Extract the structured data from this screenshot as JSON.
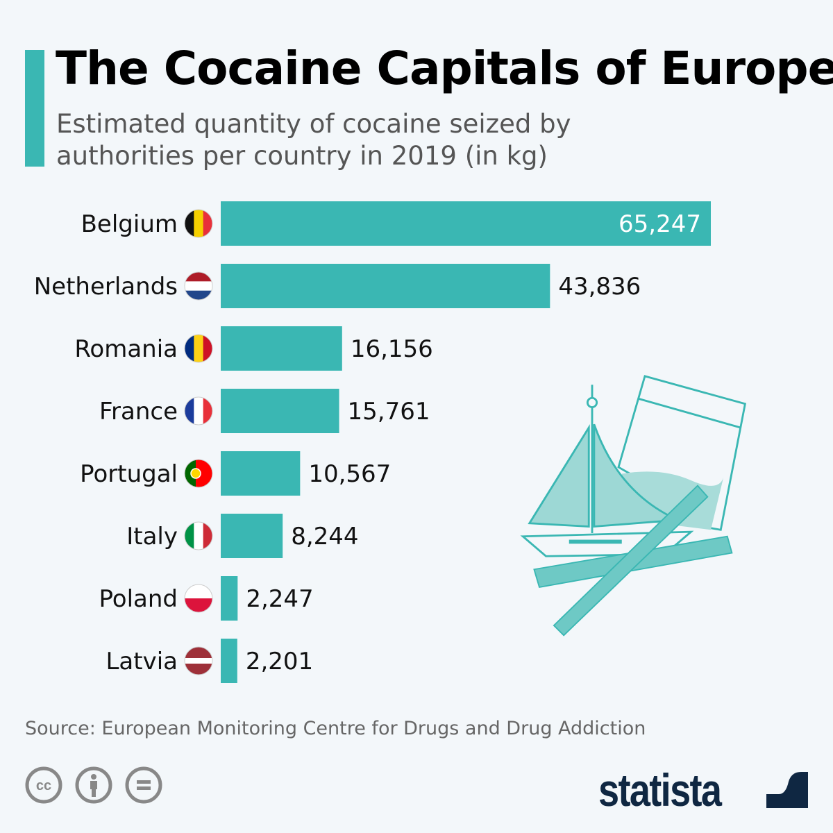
{
  "title": "The Cocaine Capitals of Europe",
  "subtitle": "Estimated quantity of cocaine seized by authorities per country in 2019 (in kg)",
  "source": "Source: European Monitoring Centre for Drugs and Drug Addiction",
  "brand": "statista",
  "colors": {
    "bar": "#3ab7b3",
    "background": "#f3f7fa",
    "brand": "#0f2742"
  },
  "license_icons": [
    "cc-icon",
    "attribution-icon",
    "no-derivatives-icon"
  ],
  "chart_data": {
    "type": "bar",
    "orientation": "horizontal",
    "title": "The Cocaine Capitals of Europe",
    "categories": [
      "Belgium",
      "Netherlands",
      "Romania",
      "France",
      "Portugal",
      "Italy",
      "Poland",
      "Latvia"
    ],
    "values": [
      65247,
      43836,
      16156,
      15761,
      10567,
      8244,
      2247,
      2201
    ],
    "labels": [
      "65,247",
      "43,836",
      "16,156",
      "15,761",
      "10,567",
      "8,244",
      "2,247",
      "2,201"
    ],
    "xlim": [
      0,
      65247
    ],
    "grid": false,
    "legend": "none"
  }
}
